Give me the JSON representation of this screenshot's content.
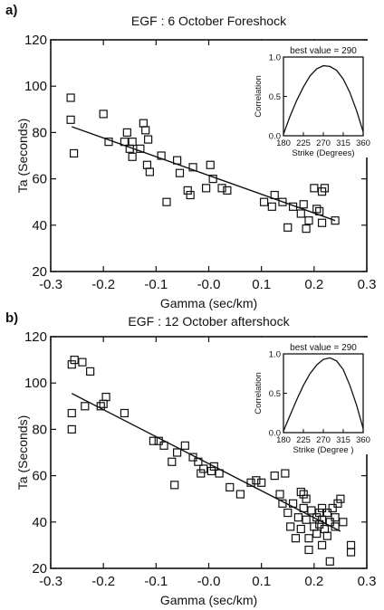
{
  "chart_data": [
    {
      "type": "scatter",
      "panel_label": "a)",
      "title": "EGF : 6 October Foreshock",
      "xlabel": "Gamma (sec/km)",
      "ylabel": "Ta (Seconds)",
      "xlim": [
        -0.3,
        0.3
      ],
      "ylim": [
        20,
        120
      ],
      "xticks": [
        "-0.3",
        "-0.2",
        "-0.1",
        "-0.0",
        "0.1",
        "0.2",
        "0.3"
      ],
      "yticks": [
        "20",
        "40",
        "60",
        "80",
        "100",
        "120"
      ],
      "grid": false,
      "points": [
        [
          -0.262,
          95
        ],
        [
          -0.262,
          85.5
        ],
        [
          -0.256,
          71
        ],
        [
          -0.2,
          88
        ],
        [
          -0.19,
          76
        ],
        [
          -0.16,
          76
        ],
        [
          -0.155,
          80
        ],
        [
          -0.15,
          73
        ],
        [
          -0.145,
          76
        ],
        [
          -0.145,
          69.5
        ],
        [
          -0.13,
          73
        ],
        [
          -0.124,
          84
        ],
        [
          -0.12,
          81
        ],
        [
          -0.117,
          66
        ],
        [
          -0.115,
          77
        ],
        [
          -0.112,
          63
        ],
        [
          -0.09,
          70
        ],
        [
          -0.08,
          50
        ],
        [
          -0.06,
          68
        ],
        [
          -0.055,
          62.5
        ],
        [
          -0.04,
          55
        ],
        [
          -0.035,
          53
        ],
        [
          -0.03,
          65
        ],
        [
          -0.005,
          56
        ],
        [
          0.003,
          66
        ],
        [
          0.008,
          60
        ],
        [
          0.025,
          56
        ],
        [
          0.035,
          55
        ],
        [
          0.105,
          50
        ],
        [
          0.12,
          48
        ],
        [
          0.125,
          53
        ],
        [
          0.14,
          50
        ],
        [
          0.15,
          39
        ],
        [
          0.16,
          48
        ],
        [
          0.175,
          45
        ],
        [
          0.18,
          49
        ],
        [
          0.185,
          38.5
        ],
        [
          0.19,
          42
        ],
        [
          0.2,
          56
        ],
        [
          0.205,
          47
        ],
        [
          0.21,
          46
        ],
        [
          0.215,
          41
        ],
        [
          0.22,
          56
        ],
        [
          0.24,
          42
        ],
        [
          0.215,
          54.5
        ]
      ],
      "fit": {
        "x": [
          -0.26,
          0.24
        ],
        "y": [
          82.5,
          42
        ]
      },
      "inset": {
        "title": "best value = 290",
        "xlabel": "Strike (Degrees)",
        "ylabel": "Correlation",
        "xlim": [
          180,
          360
        ],
        "ylim": [
          0,
          1
        ],
        "xticks": [
          "180",
          "225",
          "270",
          "315",
          "360"
        ],
        "yticks": [
          "0.0",
          "0.5",
          "1.0"
        ],
        "curve": {
          "x": [
            180,
            195,
            210,
            225,
            240,
            255,
            270,
            285,
            300,
            315,
            330,
            345,
            360
          ],
          "y": [
            0.02,
            0.25,
            0.45,
            0.62,
            0.76,
            0.85,
            0.89,
            0.88,
            0.83,
            0.72,
            0.55,
            0.32,
            0.05
          ]
        }
      }
    },
    {
      "type": "scatter",
      "panel_label": "b)",
      "title": "EGF : 12 October aftershock",
      "xlabel": "Gamma (sec/km)",
      "ylabel": "Ta (Seconds)",
      "xlim": [
        -0.3,
        0.3
      ],
      "ylim": [
        20,
        120
      ],
      "xticks": [
        "-0.3",
        "-0.2",
        "-0.1",
        "-0.0",
        "0.1",
        "0.2",
        "0.3"
      ],
      "yticks": [
        "20",
        "40",
        "60",
        "80",
        "100",
        "120"
      ],
      "grid": false,
      "points": [
        [
          -0.26,
          108
        ],
        [
          -0.255,
          110
        ],
        [
          -0.26,
          87
        ],
        [
          -0.26,
          80
        ],
        [
          -0.24,
          109
        ],
        [
          -0.235,
          90
        ],
        [
          -0.225,
          105
        ],
        [
          -0.205,
          90
        ],
        [
          -0.2,
          91
        ],
        [
          -0.195,
          94
        ],
        [
          -0.16,
          87
        ],
        [
          -0.105,
          75
        ],
        [
          -0.095,
          75
        ],
        [
          -0.085,
          73
        ],
        [
          -0.07,
          66
        ],
        [
          -0.065,
          56
        ],
        [
          -0.06,
          70
        ],
        [
          -0.045,
          73
        ],
        [
          -0.03,
          68
        ],
        [
          -0.02,
          66
        ],
        [
          -0.015,
          61
        ],
        [
          -0.01,
          63
        ],
        [
          0.005,
          62
        ],
        [
          0.01,
          64
        ],
        [
          0.02,
          61
        ],
        [
          0.04,
          55
        ],
        [
          0.06,
          52
        ],
        [
          0.08,
          57
        ],
        [
          0.09,
          58
        ],
        [
          0.1,
          57
        ],
        [
          0.125,
          60
        ],
        [
          0.135,
          52
        ],
        [
          0.14,
          48
        ],
        [
          0.145,
          61
        ],
        [
          0.15,
          44
        ],
        [
          0.155,
          38
        ],
        [
          0.16,
          48
        ],
        [
          0.165,
          33
        ],
        [
          0.17,
          42
        ],
        [
          0.175,
          53
        ],
        [
          0.18,
          46
        ],
        [
          0.185,
          50
        ],
        [
          0.185,
          41
        ],
        [
          0.19,
          33
        ],
        [
          0.19,
          28
        ],
        [
          0.195,
          45
        ],
        [
          0.2,
          38
        ],
        [
          0.205,
          42
        ],
        [
          0.205,
          35
        ],
        [
          0.21,
          44
        ],
        [
          0.21,
          39
        ],
        [
          0.215,
          46
        ],
        [
          0.215,
          41
        ],
        [
          0.22,
          37
        ],
        [
          0.225,
          44
        ],
        [
          0.225,
          34
        ],
        [
          0.23,
          40
        ],
        [
          0.23,
          23
        ],
        [
          0.235,
          46
        ],
        [
          0.24,
          42
        ],
        [
          0.24,
          38
        ],
        [
          0.245,
          48
        ],
        [
          0.25,
          50
        ],
        [
          0.255,
          40
        ],
        [
          0.27,
          30
        ],
        [
          0.27,
          27
        ],
        [
          0.18,
          52
        ],
        [
          0.175,
          37
        ],
        [
          0.215,
          30
        ]
      ],
      "fit": {
        "x": [
          -0.26,
          0.25
        ],
        "y": [
          95.5,
          36
        ]
      },
      "inset": {
        "title": "best value = 290",
        "xlabel": "Strike (Degree )",
        "ylabel": "Correlation",
        "xlim": [
          180,
          360
        ],
        "ylim": [
          0,
          1
        ],
        "xticks": [
          "180",
          "225",
          "270",
          "315",
          "360"
        ],
        "yticks": [
          "0.0",
          "0.5",
          "1.0"
        ],
        "curve": {
          "x": [
            180,
            195,
            210,
            225,
            240,
            255,
            270,
            285,
            300,
            315,
            330,
            345,
            360
          ],
          "y": [
            0.02,
            0.22,
            0.42,
            0.6,
            0.75,
            0.86,
            0.93,
            0.95,
            0.91,
            0.8,
            0.6,
            0.35,
            0.05
          ]
        }
      }
    }
  ]
}
